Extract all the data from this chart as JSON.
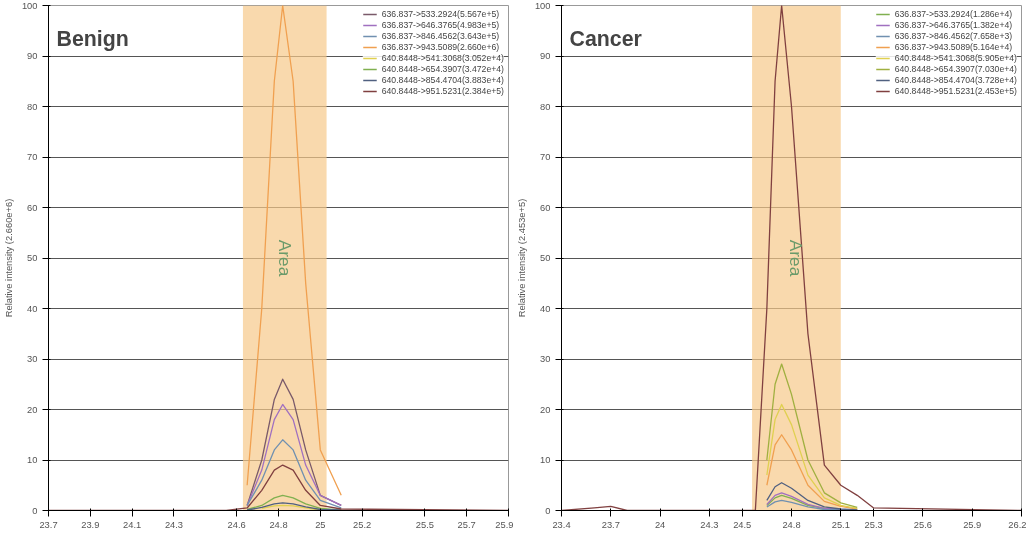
{
  "chart_data": [
    {
      "type": "line",
      "title": "Benign",
      "ylabel": "Relative intensity (2.660e+6)",
      "xlim": [
        23.7,
        25.9
      ],
      "ylim": [
        0,
        100
      ],
      "xticks": [
        23.7,
        23.9,
        24.1,
        24.3,
        24.6,
        24.8,
        25,
        25.2,
        25.5,
        25.7,
        25.9
      ],
      "yticks": [
        0,
        10,
        20,
        30,
        40,
        50,
        60,
        70,
        80,
        90,
        100
      ],
      "grid": "y",
      "legend": "top right",
      "marker": "none",
      "line_style": "solid",
      "bands": [
        {
          "axis": "x",
          "from": 24.63,
          "to": 25.03,
          "label": "Area",
          "color": "#f7c98a"
        }
      ],
      "x": [
        24.65,
        24.72,
        24.78,
        24.82,
        24.87,
        24.93,
        25.0,
        25.1
      ],
      "series": [
        {
          "name": "636.837->533.2924(5.567e+5)",
          "color": "#7a5a6a",
          "values": [
            1,
            10,
            22,
            26,
            22,
            12,
            3,
            1
          ]
        },
        {
          "name": "636.837->646.3765(4.983e+5)",
          "color": "#a070c0",
          "values": [
            1,
            8,
            18,
            21,
            18,
            9,
            3,
            1
          ]
        },
        {
          "name": "636.837->846.4562(3.643e+5)",
          "color": "#7090b0",
          "values": [
            1,
            6,
            12,
            14,
            12,
            6,
            2,
            0.5
          ]
        },
        {
          "name": "636.837->943.5089(2.660e+6)",
          "color": "#f0a050",
          "values": [
            5,
            40,
            85,
            100,
            85,
            45,
            12,
            3
          ]
        },
        {
          "name": "640.8448->541.3068(3.052e+4)",
          "color": "#e0d050",
          "x": [
            24.72,
            24.78,
            24.82,
            24.87,
            24.93,
            25.0
          ],
          "values": [
            0.4,
            0.9,
            1,
            0.9,
            0.5,
            0.1
          ]
        },
        {
          "name": "640.8448->654.3907(3.472e+4)",
          "color": "#80b050",
          "values": [
            0.2,
            1,
            2.5,
            3,
            2.5,
            1.3,
            0.4,
            0.1
          ]
        },
        {
          "name": "640.8448->854.4704(3.883e+4)",
          "color": "#506080",
          "values": [
            0.1,
            0.6,
            1.3,
            1.5,
            1.3,
            0.7,
            0.2,
            0.1
          ]
        },
        {
          "name": "640.8448->951.5231(2.384e+5)",
          "color": "#804040",
          "x": [
            23.7,
            24.55,
            24.65,
            24.72,
            24.78,
            24.82,
            24.87,
            24.93,
            25.0,
            25.1,
            25.9
          ],
          "values": [
            0,
            0,
            0.5,
            4,
            8,
            9,
            8,
            4,
            1,
            0.3,
            0
          ]
        }
      ]
    },
    {
      "type": "line",
      "title": "Cancer",
      "ylabel": "Relative intensity (2.453e+5)",
      "xlim": [
        23.4,
        26.2
      ],
      "ylim": [
        0,
        100
      ],
      "xticks": [
        23.4,
        23.7,
        24,
        24.3,
        24.5,
        24.8,
        25.1,
        25.3,
        25.6,
        25.9,
        26.2
      ],
      "yticks": [
        0,
        10,
        20,
        30,
        40,
        50,
        60,
        70,
        80,
        90,
        100
      ],
      "grid": "y",
      "legend": "top right",
      "marker": "none",
      "line_style": "solid",
      "bands": [
        {
          "axis": "x",
          "from": 24.56,
          "to": 25.1,
          "label": "Area",
          "color": "#f7c98a"
        }
      ],
      "x": [
        24.65,
        24.7,
        24.74,
        24.8,
        24.9,
        25.0,
        25.1,
        25.2
      ],
      "series": [
        {
          "name": "636.837->533.2924(1.286e+4)",
          "color": "#80b050",
          "values": [
            1,
            2.5,
            3,
            2.4,
            1,
            0.4,
            0.2,
            0.1
          ]
        },
        {
          "name": "636.837->646.3765(1.382e+4)",
          "color": "#a070c0",
          "values": [
            1.2,
            3,
            3.5,
            2.8,
            1.2,
            0.4,
            0.2,
            0.1
          ]
        },
        {
          "name": "636.837->846.4562(7.658e+3)",
          "color": "#7090b0",
          "x": [
            24.65,
            24.7,
            24.74,
            24.8,
            24.9,
            25.0,
            25.1
          ],
          "values": [
            0.7,
            1.7,
            2,
            1.6,
            0.7,
            0.2,
            0.1
          ]
        },
        {
          "name": "636.837->943.5089(5.164e+4)",
          "color": "#f0a050",
          "values": [
            5,
            13,
            15,
            12,
            5,
            1.8,
            0.8,
            0.3
          ]
        },
        {
          "name": "640.8448->541.3068(5.905e+4)",
          "color": "#e0d050",
          "values": [
            7,
            18,
            21,
            17,
            7,
            2.5,
            1,
            0.4
          ]
        },
        {
          "name": "640.8448->654.3907(7.030e+4)",
          "color": "#a0b040",
          "values": [
            10,
            25,
            29,
            23,
            10,
            3.5,
            1.5,
            0.6
          ]
        },
        {
          "name": "640.8448->854.4704(3.728e+4)",
          "color": "#506080",
          "values": [
            2,
            4.7,
            5.5,
            4.4,
            2,
            0.7,
            0.3,
            0.1
          ]
        },
        {
          "name": "640.8448->951.5231(2.453e+5)",
          "color": "#804040",
          "x": [
            23.4,
            23.6,
            23.7,
            23.8,
            24.5,
            24.58,
            24.65,
            24.7,
            24.74,
            24.8,
            24.9,
            25.0,
            25.1,
            25.2,
            25.3,
            26.2
          ],
          "values": [
            0,
            0.5,
            0.8,
            0,
            0,
            0,
            40,
            85,
            100,
            80,
            35,
            9,
            5,
            3,
            0.5,
            0
          ]
        }
      ]
    }
  ]
}
